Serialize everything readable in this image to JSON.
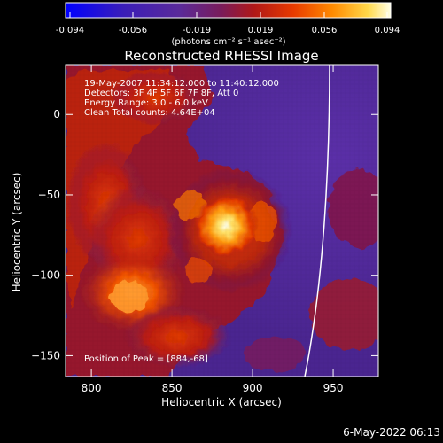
{
  "colors": {
    "background": "#000000",
    "text": "#ffffff",
    "colormap": [
      "#0000ff",
      "#3b1eb8",
      "#5a2a9a",
      "#7a1c5a",
      "#b01818",
      "#e83a00",
      "#ff8a00",
      "#ffd84a",
      "#ffffe6"
    ]
  },
  "colorbar": {
    "ticks": [
      "-0.094",
      "-0.056",
      "-0.019",
      "0.019",
      "0.056",
      "0.094"
    ],
    "unit_label": "(photons cm⁻² s⁻¹ asec⁻²)"
  },
  "chart_data": {
    "type": "heatmap",
    "title": "Reconstructed RHESSI Image",
    "xlabel": "Heliocentric X (arcsec)",
    "ylabel": "Heliocentric Y (arcsec)",
    "xlim": [
      784,
      978
    ],
    "ylim": [
      -163,
      31
    ],
    "x_ticks": [
      800,
      850,
      900,
      950
    ],
    "y_ticks": [
      0,
      -50,
      -100,
      -150
    ],
    "x_tick_labels": [
      "800",
      "850",
      "900",
      "950"
    ],
    "y_tick_labels": [
      "0",
      "−50",
      "−100",
      "−150"
    ],
    "value_range": [
      -0.094,
      0.094
    ],
    "peak_position": [
      884,
      -68
    ],
    "annotations": [
      "19-May-2007 11:34:12.000 to 11:40:12.000",
      "Detectors: 3F 4F 5F 6F 7F 8F, Att 0",
      "Energy Range: 3.0 - 6.0 keV",
      "Clean     Total counts: 4.64E+04",
      "Position of Peak = [884,-68]"
    ]
  },
  "footer": {
    "timestamp": "6-May-2022 06:13"
  }
}
